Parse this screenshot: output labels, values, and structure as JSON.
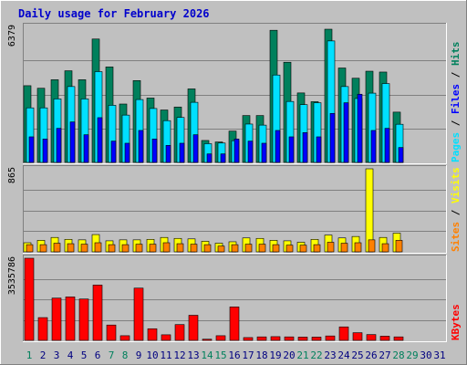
{
  "chart_data": {
    "type": "bar",
    "title": "Daily usage for February 2026",
    "categories": [
      "1",
      "2",
      "3",
      "4",
      "5",
      "6",
      "7",
      "8",
      "9",
      "10",
      "11",
      "12",
      "13",
      "14",
      "15",
      "16",
      "17",
      "18",
      "19",
      "20",
      "21",
      "22",
      "23",
      "24",
      "25",
      "26",
      "27",
      "28",
      "29",
      "30",
      "31"
    ],
    "weekend_days": [
      "1",
      "7",
      "8",
      "14",
      "15",
      "21",
      "22",
      "28",
      "29"
    ],
    "colors": {
      "hits": "#00805c",
      "files": "#00e0ff",
      "pages": "#0000ff",
      "visits": "#ffff00",
      "sites": "#ff8000",
      "kbytes": "#ff0000",
      "weekend_tick": "#00805c",
      "weekday_tick": "#000080"
    },
    "panels": [
      {
        "id": "hits-files-pages",
        "ymax_label": "6379",
        "ylim": [
          0,
          6379
        ],
        "legend": [
          {
            "label": "Pages",
            "color": "#00e0ff"
          },
          {
            "label": "Files",
            "color": "#0000ff"
          },
          {
            "label": "Hits",
            "color": "#00805c"
          }
        ],
        "series": [
          {
            "name": "Hits",
            "color": "#00805c",
            "values": [
              3600,
              3480,
              3880,
              4300,
              3880,
              5790,
              4480,
              2740,
              3840,
              3020,
              2460,
              2600,
              3450,
              1030,
              960,
              1470,
              2200,
              2200,
              6200,
              4700,
              3260,
              2850,
              6250,
              4430,
              3950,
              4280,
              4240,
              2360,
              0,
              0,
              0
            ]
          },
          {
            "name": "Files",
            "color": "#00e0ff",
            "values": [
              2560,
              2560,
              2980,
              3560,
              2980,
              4260,
              2680,
              2220,
              2950,
              2530,
              1960,
              2110,
              2820,
              880,
              910,
              1020,
              1800,
              1750,
              4100,
              2860,
              2710,
              2800,
              5700,
              3560,
              3000,
              3250,
              3700,
              1790,
              0,
              0,
              0
            ]
          },
          {
            "name": "Pages",
            "color": "#0000ff",
            "values": [
              1200,
              1100,
              1600,
              1900,
              1300,
              2100,
              1000,
              900,
              1500,
              1100,
              800,
              900,
              1300,
              400,
              400,
              1100,
              1000,
              900,
              1500,
              1200,
              1400,
              1200,
              2300,
              2800,
              3200,
              1500,
              1600,
              700,
              0,
              0,
              0
            ]
          }
        ]
      },
      {
        "id": "visits-sites",
        "ymax_label": "865",
        "ylim": [
          0,
          865
        ],
        "legend": [
          {
            "label": "Sites",
            "color": "#ff8000"
          },
          {
            "label": "Visits",
            "color": "#ffff00"
          }
        ],
        "series": [
          {
            "name": "Visits",
            "color": "#ffff00",
            "values": [
              95,
              120,
              150,
              130,
              125,
              180,
              115,
              125,
              125,
              130,
              150,
              140,
              135,
              110,
              90,
              105,
              145,
              140,
              120,
              115,
              100,
              130,
              175,
              145,
              160,
              865,
              150,
              195,
              0,
              0,
              0
            ]
          },
          {
            "name": "Sites",
            "color": "#ff8000",
            "values": [
              75,
              75,
              90,
              85,
              80,
              95,
              75,
              75,
              80,
              80,
              95,
              85,
              80,
              75,
              60,
              75,
              80,
              80,
              75,
              70,
              70,
              75,
              100,
              90,
              95,
              125,
              85,
              120,
              0,
              0,
              0
            ]
          }
        ]
      },
      {
        "id": "kbytes",
        "ymax_label": "3535786",
        "ylim": [
          0,
          3535786
        ],
        "legend": [
          {
            "label": "KBytes",
            "color": "#ff0000"
          }
        ],
        "series": [
          {
            "name": "KBytes",
            "color": "#ff0000",
            "values": [
              3535786,
              980000,
              1820000,
              1870000,
              1780000,
              2380000,
              660000,
              200000,
              2250000,
              500000,
              240000,
              680000,
              1080000,
              50000,
              200000,
              1440000,
              120000,
              150000,
              160000,
              150000,
              140000,
              140000,
              190000,
              580000,
              330000,
              250000,
              180000,
              150000,
              0,
              0,
              0
            ]
          }
        ]
      }
    ]
  }
}
